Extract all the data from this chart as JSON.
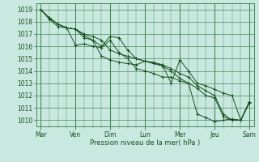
{
  "bg_color": "#c8e8e0",
  "grid_color": "#4a8a5a",
  "line_color": "#1a5020",
  "ylabel_text": "Pression niveau de la mer( hPa )",
  "ylim": [
    1009.5,
    1019.5
  ],
  "yticks": [
    1010,
    1011,
    1012,
    1013,
    1014,
    1015,
    1016,
    1017,
    1018,
    1019
  ],
  "day_labels": [
    "Mar",
    "Ven",
    "Dim",
    "Lun",
    "Mer",
    "Jeu",
    "Sam"
  ],
  "day_positions": [
    0,
    4,
    8,
    12,
    16,
    20,
    24
  ],
  "num_points": 25,
  "series": [
    [
      1019.0,
      1018.3,
      1017.8,
      1017.5,
      1017.4,
      1016.9,
      1016.5,
      1016.0,
      1016.8,
      1016.7,
      1015.7,
      1015.0,
      1014.8,
      1014.6,
      1014.5,
      1013.0,
      1014.9,
      1014.0,
      1013.0,
      1012.8,
      1012.5,
      1012.2,
      1012.0,
      1010.0,
      1011.5
    ],
    [
      1019.0,
      1018.2,
      1017.6,
      1017.5,
      1016.1,
      1016.2,
      1016.0,
      1015.9,
      1016.5,
      1015.5,
      1015.0,
      1014.2,
      1014.0,
      1013.8,
      1013.5,
      1013.5,
      1013.2,
      1013.0,
      1010.5,
      1010.2,
      1009.9,
      1010.0,
      1010.1,
      1010.0,
      1011.5
    ],
    [
      1019.0,
      1018.3,
      1017.8,
      1017.5,
      1017.4,
      1016.7,
      1016.5,
      1015.2,
      1014.9,
      1014.7,
      1014.6,
      1014.5,
      1014.8,
      1014.7,
      1014.5,
      1014.2,
      1013.8,
      1013.5,
      1012.8,
      1012.4,
      1012.0,
      1010.5,
      1010.0,
      1010.0,
      1011.5
    ],
    [
      1019.0,
      1018.3,
      1017.8,
      1017.5,
      1017.4,
      1017.0,
      1016.8,
      1016.5,
      1015.7,
      1015.4,
      1015.2,
      1015.0,
      1014.8,
      1014.6,
      1014.4,
      1014.0,
      1013.4,
      1013.0,
      1012.6,
      1012.0,
      1011.8,
      1010.3,
      1010.0,
      1010.0,
      1011.4
    ]
  ]
}
